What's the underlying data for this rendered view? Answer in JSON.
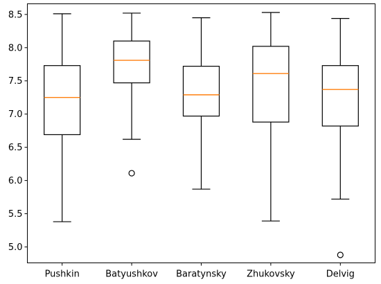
{
  "chart_data": {
    "type": "box",
    "title": "",
    "xlabel": "",
    "ylabel": "",
    "ylim": [
      4.76,
      8.66
    ],
    "yticks": [
      5.0,
      5.5,
      6.0,
      6.5,
      7.0,
      7.5,
      8.0,
      8.5
    ],
    "ytick_labels": [
      "5.0",
      "5.5",
      "6.0",
      "6.5",
      "7.0",
      "7.5",
      "8.0",
      "8.5"
    ],
    "grid": false,
    "colors": {
      "box": "#000000",
      "median": "#ff7f0e",
      "flier": "#000000"
    },
    "categories": [
      "Pushkin",
      "Batyushkov",
      "Baratynsky",
      "Zhukovsky",
      "Delvig"
    ],
    "boxes": [
      {
        "whisker_low": 5.38,
        "q1": 6.69,
        "median": 7.25,
        "q3": 7.73,
        "whisker_high": 8.51,
        "fliers": []
      },
      {
        "whisker_low": 6.62,
        "q1": 7.47,
        "median": 7.81,
        "q3": 8.1,
        "whisker_high": 8.52,
        "fliers": [
          6.11
        ]
      },
      {
        "whisker_low": 5.87,
        "q1": 6.97,
        "median": 7.29,
        "q3": 7.72,
        "whisker_high": 8.45,
        "fliers": []
      },
      {
        "whisker_low": 5.39,
        "q1": 6.88,
        "median": 7.61,
        "q3": 8.02,
        "whisker_high": 8.53,
        "fliers": []
      },
      {
        "whisker_low": 5.72,
        "q1": 6.82,
        "median": 7.37,
        "q3": 7.73,
        "whisker_high": 8.44,
        "fliers": [
          4.88
        ]
      }
    ]
  }
}
